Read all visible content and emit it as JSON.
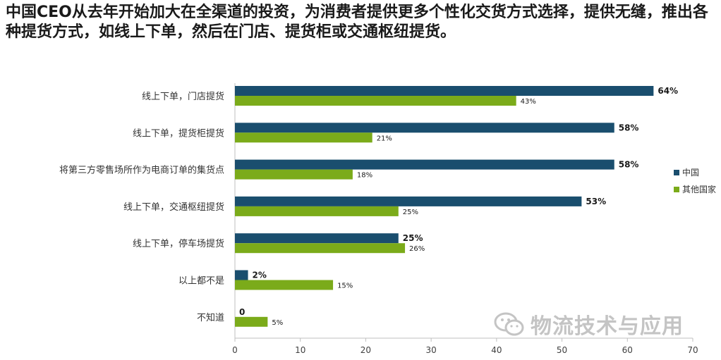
{
  "title": "中国CEO从去年开始加大在全渠道的投资，为消费者提供更多个性化交货方式选择，提供无缝，推出各种提货方式，如线上下单，然后在门店、提货柜或交通枢纽提货。",
  "watermark": "物流技术与应用",
  "chart_data": {
    "type": "bar",
    "orientation": "horizontal",
    "categories": [
      "线上下单，门店提货",
      "线上下单，提货柜提货",
      "将第三方零售场所作为电商订单的集货点",
      "线上下单，交通枢纽提货",
      "线上下单，停车场提货",
      "以上都不是",
      "不知道"
    ],
    "series": [
      {
        "name": "中国",
        "values": [
          64,
          58,
          58,
          53,
          25,
          2,
          0
        ],
        "labels": [
          "64%",
          "58%",
          "58%",
          "53%",
          "25%",
          "2%",
          "0"
        ],
        "color": "#1a4e6e"
      },
      {
        "name": "其他国家",
        "values": [
          43,
          21,
          18,
          25,
          26,
          15,
          5
        ],
        "labels": [
          "43%",
          "21%",
          "18%",
          "25%",
          "26%",
          "15%",
          "5%"
        ],
        "color": "#7bab1a"
      }
    ],
    "xlim": [
      0,
      70
    ],
    "xticks": [
      "0",
      "10",
      "20",
      "30",
      "40",
      "50",
      "60",
      "70"
    ],
    "grid": false,
    "legend_position": "right"
  }
}
